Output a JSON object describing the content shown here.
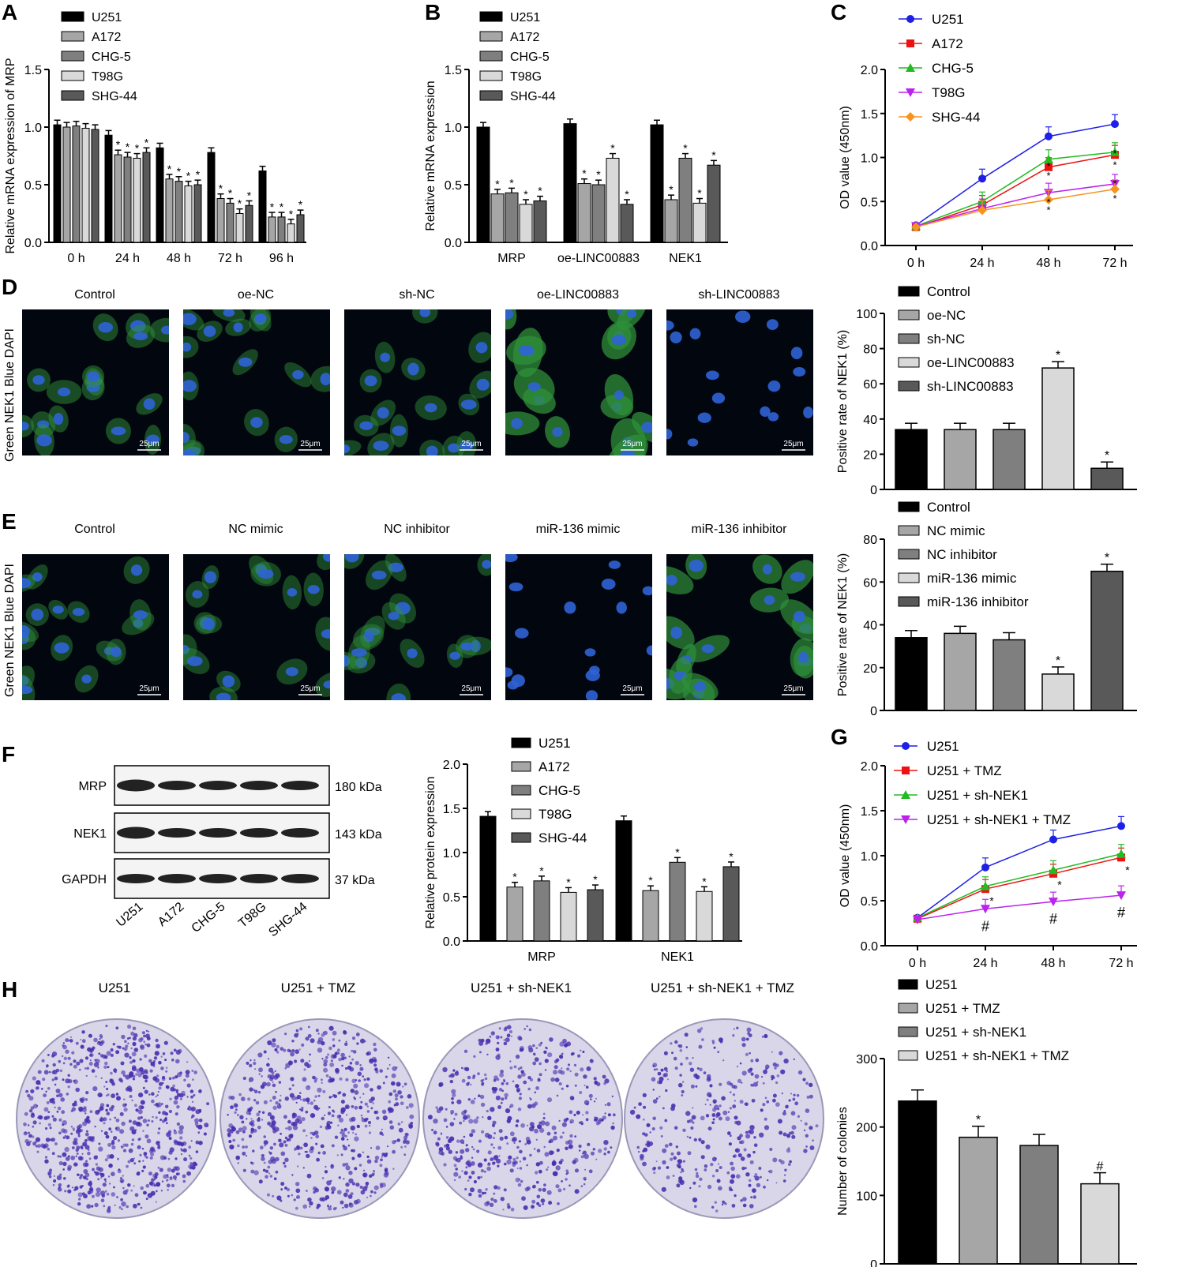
{
  "panel_letters": [
    "A",
    "B",
    "C",
    "D",
    "E",
    "F",
    "G",
    "H"
  ],
  "panel_A": {
    "type": "bar",
    "ylabel": "Relative mRNA expression of MRP",
    "ylim": [
      0,
      1.5
    ],
    "yticks": [
      "0.0",
      "0.5",
      "1.0",
      "1.5"
    ],
    "categories": [
      "0 h",
      "24 h",
      "48 h",
      "72 h",
      "96 h"
    ],
    "series": [
      {
        "name": "U251",
        "color": "#000000",
        "values": [
          1.02,
          0.93,
          0.82,
          0.78,
          0.62
        ],
        "stars": [
          false,
          false,
          false,
          false,
          false
        ]
      },
      {
        "name": "A172",
        "color": "#a6a6a6",
        "values": [
          1.0,
          0.76,
          0.55,
          0.38,
          0.22
        ],
        "stars": [
          false,
          true,
          true,
          true,
          true
        ]
      },
      {
        "name": "CHG-5",
        "color": "#7f7f7f",
        "values": [
          1.01,
          0.74,
          0.53,
          0.34,
          0.22
        ],
        "stars": [
          false,
          true,
          true,
          true,
          true
        ]
      },
      {
        "name": "T98G",
        "color": "#d9d9d9",
        "values": [
          0.99,
          0.73,
          0.49,
          0.25,
          0.16
        ],
        "stars": [
          false,
          true,
          true,
          true,
          true
        ]
      },
      {
        "name": "SHG-44",
        "color": "#595959",
        "values": [
          0.98,
          0.78,
          0.5,
          0.32,
          0.24
        ],
        "stars": [
          false,
          true,
          true,
          true,
          true
        ]
      }
    ]
  },
  "panel_B": {
    "type": "bar",
    "ylabel": "Relative mRNA expression",
    "ylim": [
      0,
      1.5
    ],
    "yticks": [
      "0.0",
      "0.5",
      "1.0",
      "1.5"
    ],
    "categories": [
      "MRP",
      "oe-LINC00883",
      "NEK1"
    ],
    "series": [
      {
        "name": "U251",
        "color": "#000000",
        "values": [
          1.0,
          1.03,
          1.02
        ],
        "stars": [
          false,
          false,
          false
        ]
      },
      {
        "name": "A172",
        "color": "#a6a6a6",
        "values": [
          0.42,
          0.51,
          0.37
        ],
        "stars": [
          true,
          true,
          true
        ]
      },
      {
        "name": "CHG-5",
        "color": "#7f7f7f",
        "values": [
          0.43,
          0.5,
          0.73
        ],
        "stars": [
          true,
          true,
          true
        ]
      },
      {
        "name": "T98G",
        "color": "#d9d9d9",
        "values": [
          0.33,
          0.73,
          0.34
        ],
        "stars": [
          true,
          true,
          true
        ]
      },
      {
        "name": "SHG-44",
        "color": "#595959",
        "values": [
          0.36,
          0.33,
          0.67
        ],
        "stars": [
          true,
          true,
          true
        ]
      }
    ]
  },
  "panel_C": {
    "type": "line",
    "ylabel": "OD value (450nm)",
    "ylim": [
      0,
      2.0
    ],
    "yticks": [
      "0.0",
      "0.5",
      "1.0",
      "1.5",
      "2.0"
    ],
    "categories": [
      "0 h",
      "24 h",
      "48 h",
      "72 h"
    ],
    "series": [
      {
        "name": "U251",
        "color": "#1f1fe6",
        "marker": "circle",
        "values": [
          0.23,
          0.76,
          1.24,
          1.38
        ]
      },
      {
        "name": "A172",
        "color": "#ee1111",
        "marker": "square",
        "values": [
          0.21,
          0.46,
          0.89,
          1.03
        ]
      },
      {
        "name": "CHG-5",
        "color": "#22bb22",
        "marker": "triangle-up",
        "values": [
          0.22,
          0.5,
          0.98,
          1.06
        ]
      },
      {
        "name": "T98G",
        "color": "#bb22ee",
        "marker": "triangle-down",
        "values": [
          0.22,
          0.42,
          0.6,
          0.7
        ]
      },
      {
        "name": "SHG-44",
        "color": "#f7931e",
        "marker": "diamond",
        "values": [
          0.21,
          0.4,
          0.52,
          0.64
        ]
      }
    ],
    "stars": [
      "*",
      "*",
      "*",
      "*"
    ]
  },
  "panel_D": {
    "image_labels": [
      "Control",
      "oe-NC",
      "sh-NC",
      "oe-LINC00883",
      "sh-LINC00883"
    ],
    "side_label": "Green NEK1   Blue   DAPI",
    "scale_bar": "25μm",
    "chart": {
      "type": "bar",
      "ylabel": "Positive rate of NEK1 (%)",
      "ylim": [
        0,
        100
      ],
      "yticks": [
        "0",
        "20",
        "40",
        "60",
        "80",
        "100"
      ],
      "series": [
        {
          "name": "Control",
          "color": "#000000",
          "value": 34,
          "mark": ""
        },
        {
          "name": "oe-NC",
          "color": "#a6a6a6",
          "value": 34,
          "mark": ""
        },
        {
          "name": "sh-NC",
          "color": "#7f7f7f",
          "value": 34,
          "mark": ""
        },
        {
          "name": "oe-LINC00883",
          "color": "#d9d9d9",
          "value": 69,
          "mark": "*"
        },
        {
          "name": "sh-LINC00883",
          "color": "#595959",
          "value": 12,
          "mark": "*"
        }
      ]
    }
  },
  "panel_E": {
    "image_labels": [
      "Control",
      "NC mimic",
      "NC inhibitor",
      "miR-136 mimic",
      "miR-136 inhibitor"
    ],
    "side_label": "Green NEK1   Blue   DAPI",
    "scale_bar": "25μm",
    "chart": {
      "type": "bar",
      "ylabel": "Positive rate of NEK1 (%)",
      "ylim": [
        0,
        80
      ],
      "yticks": [
        "0",
        "20",
        "40",
        "60",
        "80"
      ],
      "series": [
        {
          "name": "Control",
          "color": "#000000",
          "value": 34,
          "mark": ""
        },
        {
          "name": "NC mimic",
          "color": "#a6a6a6",
          "value": 36,
          "mark": ""
        },
        {
          "name": "NC inhibitor",
          "color": "#7f7f7f",
          "value": 33,
          "mark": ""
        },
        {
          "name": "miR-136 mimic",
          "color": "#d9d9d9",
          "value": 17,
          "mark": "*"
        },
        {
          "name": "miR-136 inhibitor",
          "color": "#595959",
          "value": 65,
          "mark": "*"
        }
      ]
    }
  },
  "panel_F": {
    "blot_rows": [
      {
        "label": "MRP",
        "kda": "180 kDa"
      },
      {
        "label": "NEK1",
        "kda": "143 kDa"
      },
      {
        "label": "GAPDH",
        "kda": "37 kDa"
      }
    ],
    "lanes": [
      "U251",
      "A172",
      "CHG-5",
      "T98G",
      "SHG-44"
    ],
    "chart": {
      "type": "bar",
      "ylabel": "Relative protein expression",
      "ylim": [
        0,
        2.0
      ],
      "yticks": [
        "0.0",
        "0.5",
        "1.0",
        "1.5",
        "2.0"
      ],
      "categories": [
        "MRP",
        "NEK1"
      ],
      "series": [
        {
          "name": "U251",
          "color": "#000000",
          "values": [
            1.41,
            1.36
          ],
          "stars": [
            false,
            false
          ]
        },
        {
          "name": "A172",
          "color": "#a6a6a6",
          "values": [
            0.61,
            0.57
          ],
          "stars": [
            true,
            true
          ]
        },
        {
          "name": "CHG-5",
          "color": "#7f7f7f",
          "values": [
            0.68,
            0.89
          ],
          "stars": [
            true,
            true
          ]
        },
        {
          "name": "T98G",
          "color": "#d9d9d9",
          "values": [
            0.55,
            0.56
          ],
          "stars": [
            true,
            true
          ]
        },
        {
          "name": "SHG-44",
          "color": "#595959",
          "values": [
            0.58,
            0.84
          ],
          "stars": [
            true,
            true
          ]
        }
      ]
    }
  },
  "panel_G": {
    "type": "line",
    "ylabel": "OD value (450nm)",
    "ylim": [
      0,
      2.0
    ],
    "yticks": [
      "0.0",
      "0.5",
      "1.0",
      "1.5",
      "2.0"
    ],
    "categories": [
      "0 h",
      "24 h",
      "48 h",
      "72 h"
    ],
    "series": [
      {
        "name": "U251",
        "color": "#1f1fe6",
        "marker": "circle",
        "values": [
          0.31,
          0.87,
          1.18,
          1.33
        ]
      },
      {
        "name": "U251 + TMZ",
        "color": "#ee1111",
        "marker": "square",
        "values": [
          0.3,
          0.63,
          0.8,
          0.98
        ]
      },
      {
        "name": "U251 + sh-NEK1",
        "color": "#22bb22",
        "marker": "triangle-up",
        "values": [
          0.31,
          0.66,
          0.84,
          1.02
        ]
      },
      {
        "name": "U251 + sh-NEK1 + TMZ",
        "color": "#bb22ee",
        "marker": "triangle-down",
        "values": [
          0.29,
          0.41,
          0.49,
          0.56
        ]
      }
    ],
    "stars": [
      "*",
      "*",
      "*"
    ],
    "hashes": [
      "#",
      "#",
      "#"
    ]
  },
  "panel_H": {
    "dish_labels": [
      "U251",
      "U251 + TMZ",
      "U251 + sh-NEK1",
      "U251 + sh-NEK1 + TMZ"
    ],
    "dish_density": [
      1.0,
      0.78,
      0.6,
      0.4
    ],
    "chart": {
      "type": "bar",
      "ylabel": "Number of colonies",
      "ylim": [
        0,
        300
      ],
      "yticks": [
        "0",
        "100",
        "200",
        "300"
      ],
      "series": [
        {
          "name": "U251",
          "color": "#000000",
          "value": 238,
          "mark": ""
        },
        {
          "name": "U251 + TMZ",
          "color": "#a6a6a6",
          "value": 185,
          "mark": "*"
        },
        {
          "name": "U251 + sh-NEK1",
          "color": "#7f7f7f",
          "value": 173,
          "mark": ""
        },
        {
          "name": "U251 + sh-NEK1 + TMZ",
          "color": "#d9d9d9",
          "value": 117,
          "mark": "#"
        }
      ]
    }
  }
}
